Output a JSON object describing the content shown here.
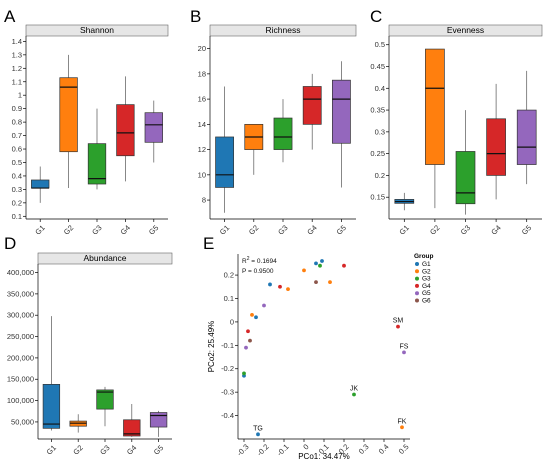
{
  "colors": {
    "G1": "#1f77b4",
    "G2": "#ff7f0e",
    "G3": "#2ca02c",
    "G4": "#d62728",
    "G5": "#9467bd",
    "G6": "#8c564b"
  },
  "chart_data": [
    {
      "panel": "A",
      "type": "box",
      "title": "Shannon",
      "categories": [
        "G1",
        "G2",
        "G3",
        "G4",
        "G5"
      ],
      "ylim": [
        0.08,
        1.44
      ],
      "yticks": [
        "0.1",
        "0.2",
        "0.3",
        "0.4",
        "0.5",
        "0.6",
        "0.7",
        "0.8",
        "0.9",
        "1",
        "1.1",
        "1.2",
        "1.3",
        "1.4"
      ],
      "boxes": [
        {
          "min": 0.2,
          "q1": 0.31,
          "median": 0.31,
          "q3": 0.37,
          "max": 0.47
        },
        {
          "min": 0.31,
          "q1": 0.58,
          "median": 1.06,
          "q3": 1.13,
          "max": 1.3
        },
        {
          "min": 0.3,
          "q1": 0.34,
          "median": 0.38,
          "q3": 0.64,
          "max": 0.9
        },
        {
          "min": 0.36,
          "q1": 0.55,
          "median": 0.72,
          "q3": 0.93,
          "max": 1.14
        },
        {
          "min": 0.5,
          "q1": 0.65,
          "median": 0.78,
          "q3": 0.87,
          "max": 0.96
        }
      ]
    },
    {
      "panel": "B",
      "type": "box",
      "title": "Richness",
      "categories": [
        "G1",
        "G2",
        "G3",
        "G4",
        "G5"
      ],
      "ylim": [
        6.5,
        21
      ],
      "yticks": [
        "8",
        "10",
        "12",
        "14",
        "16",
        "18",
        "20"
      ],
      "boxes": [
        {
          "min": 7,
          "q1": 9,
          "median": 10,
          "q3": 13,
          "max": 17
        },
        {
          "min": 10,
          "q1": 12,
          "median": 13,
          "q3": 14,
          "max": 14
        },
        {
          "min": 11,
          "q1": 12,
          "median": 13,
          "q3": 14.5,
          "max": 16
        },
        {
          "min": 12,
          "q1": 14,
          "median": 16,
          "q3": 17,
          "max": 18
        },
        {
          "min": 9,
          "q1": 12.5,
          "median": 16,
          "q3": 17.5,
          "max": 19
        }
      ]
    },
    {
      "panel": "C",
      "type": "box",
      "title": "Evenness",
      "categories": [
        "G1",
        "G2",
        "G3",
        "G4",
        "G5"
      ],
      "ylim": [
        0.1,
        0.52
      ],
      "yticks": [
        "0.15",
        "0.2",
        "0.25",
        "0.3",
        "0.35",
        "0.4",
        "0.45",
        "0.5"
      ],
      "boxes": [
        {
          "min": 0.12,
          "q1": 0.136,
          "median": 0.14,
          "q3": 0.145,
          "max": 0.16
        },
        {
          "min": 0.125,
          "q1": 0.225,
          "median": 0.4,
          "q3": 0.49,
          "max": 0.49
        },
        {
          "min": 0.11,
          "q1": 0.135,
          "median": 0.16,
          "q3": 0.255,
          "max": 0.35
        },
        {
          "min": 0.145,
          "q1": 0.2,
          "median": 0.25,
          "q3": 0.33,
          "max": 0.41
        },
        {
          "min": 0.18,
          "q1": 0.225,
          "median": 0.265,
          "q3": 0.35,
          "max": 0.44
        }
      ]
    },
    {
      "panel": "D",
      "type": "box",
      "title": "Abundance",
      "categories": [
        "G1",
        "G2",
        "G3",
        "G4",
        "G5"
      ],
      "ylim": [
        10000,
        420000
      ],
      "yticks": [
        "50,000",
        "100,000",
        "150,000",
        "200,000",
        "250,000",
        "300,000",
        "350,000",
        "400,000"
      ],
      "boxes": [
        {
          "min": 30000,
          "q1": 35000,
          "median": 45000,
          "q3": 138000,
          "max": 298000
        },
        {
          "min": 25000,
          "q1": 40000,
          "median": 47000,
          "q3": 52000,
          "max": 68000
        },
        {
          "min": 40000,
          "q1": 80000,
          "median": 120000,
          "q3": 125000,
          "max": 132000
        },
        {
          "min": 15000,
          "q1": 17000,
          "median": 22000,
          "q3": 55000,
          "max": 92000
        },
        {
          "min": 15000,
          "q1": 38000,
          "median": 65000,
          "q3": 72000,
          "max": 76000
        }
      ]
    },
    {
      "panel": "E",
      "type": "scatter",
      "title": "",
      "xlabel": "PCo1: 34.47%",
      "ylabel": "PCo2: 25.49%",
      "xlim": [
        -0.33,
        0.53
      ],
      "ylim": [
        -0.5,
        0.29
      ],
      "xticks": [
        "-0.3",
        "-0.2",
        "-0.1",
        "0",
        "0.1",
        "0.2",
        "0.3",
        "0.4",
        "0.5"
      ],
      "yticks": [
        "-0.4",
        "-0.3",
        "-0.2",
        "-0.1",
        "0",
        "0.1",
        "0.2"
      ],
      "stats": {
        "r2": "0.1694",
        "p": "P = 0.9500"
      },
      "legend": {
        "title": "Group",
        "items": [
          "G1",
          "G2",
          "G3",
          "G4",
          "G5",
          "G6"
        ]
      },
      "points": [
        {
          "x": 0.06,
          "y": 0.25,
          "g": "G1"
        },
        {
          "x": 0.09,
          "y": 0.26,
          "g": "G1"
        },
        {
          "x": -0.17,
          "y": 0.16,
          "g": "G1"
        },
        {
          "x": -0.24,
          "y": 0.02,
          "g": "G1"
        },
        {
          "x": -0.3,
          "y": -0.23,
          "g": "G1"
        },
        {
          "x": -0.23,
          "y": -0.48,
          "g": "G1",
          "label": "TG"
        },
        {
          "x": 0.0,
          "y": 0.22,
          "g": "G2"
        },
        {
          "x": 0.13,
          "y": 0.17,
          "g": "G2"
        },
        {
          "x": -0.08,
          "y": 0.14,
          "g": "G2"
        },
        {
          "x": -0.26,
          "y": 0.03,
          "g": "G2"
        },
        {
          "x": 0.49,
          "y": -0.45,
          "g": "G2",
          "label": "FK"
        },
        {
          "x": 0.08,
          "y": 0.24,
          "g": "G3"
        },
        {
          "x": -0.3,
          "y": -0.22,
          "g": "G3"
        },
        {
          "x": 0.25,
          "y": -0.31,
          "g": "G3",
          "label": "JK"
        },
        {
          "x": 0.2,
          "y": 0.24,
          "g": "G4"
        },
        {
          "x": -0.28,
          "y": -0.04,
          "g": "G4"
        },
        {
          "x": 0.47,
          "y": -0.02,
          "g": "G4",
          "label": "SM"
        },
        {
          "x": -0.12,
          "y": 0.15,
          "g": "G4"
        },
        {
          "x": -0.2,
          "y": 0.07,
          "g": "G5"
        },
        {
          "x": -0.29,
          "y": -0.11,
          "g": "G5"
        },
        {
          "x": 0.5,
          "y": -0.13,
          "g": "G5",
          "label": "FS"
        },
        {
          "x": 0.06,
          "y": 0.17,
          "g": "G6"
        },
        {
          "x": -0.27,
          "y": -0.08,
          "g": "G6"
        }
      ]
    }
  ]
}
